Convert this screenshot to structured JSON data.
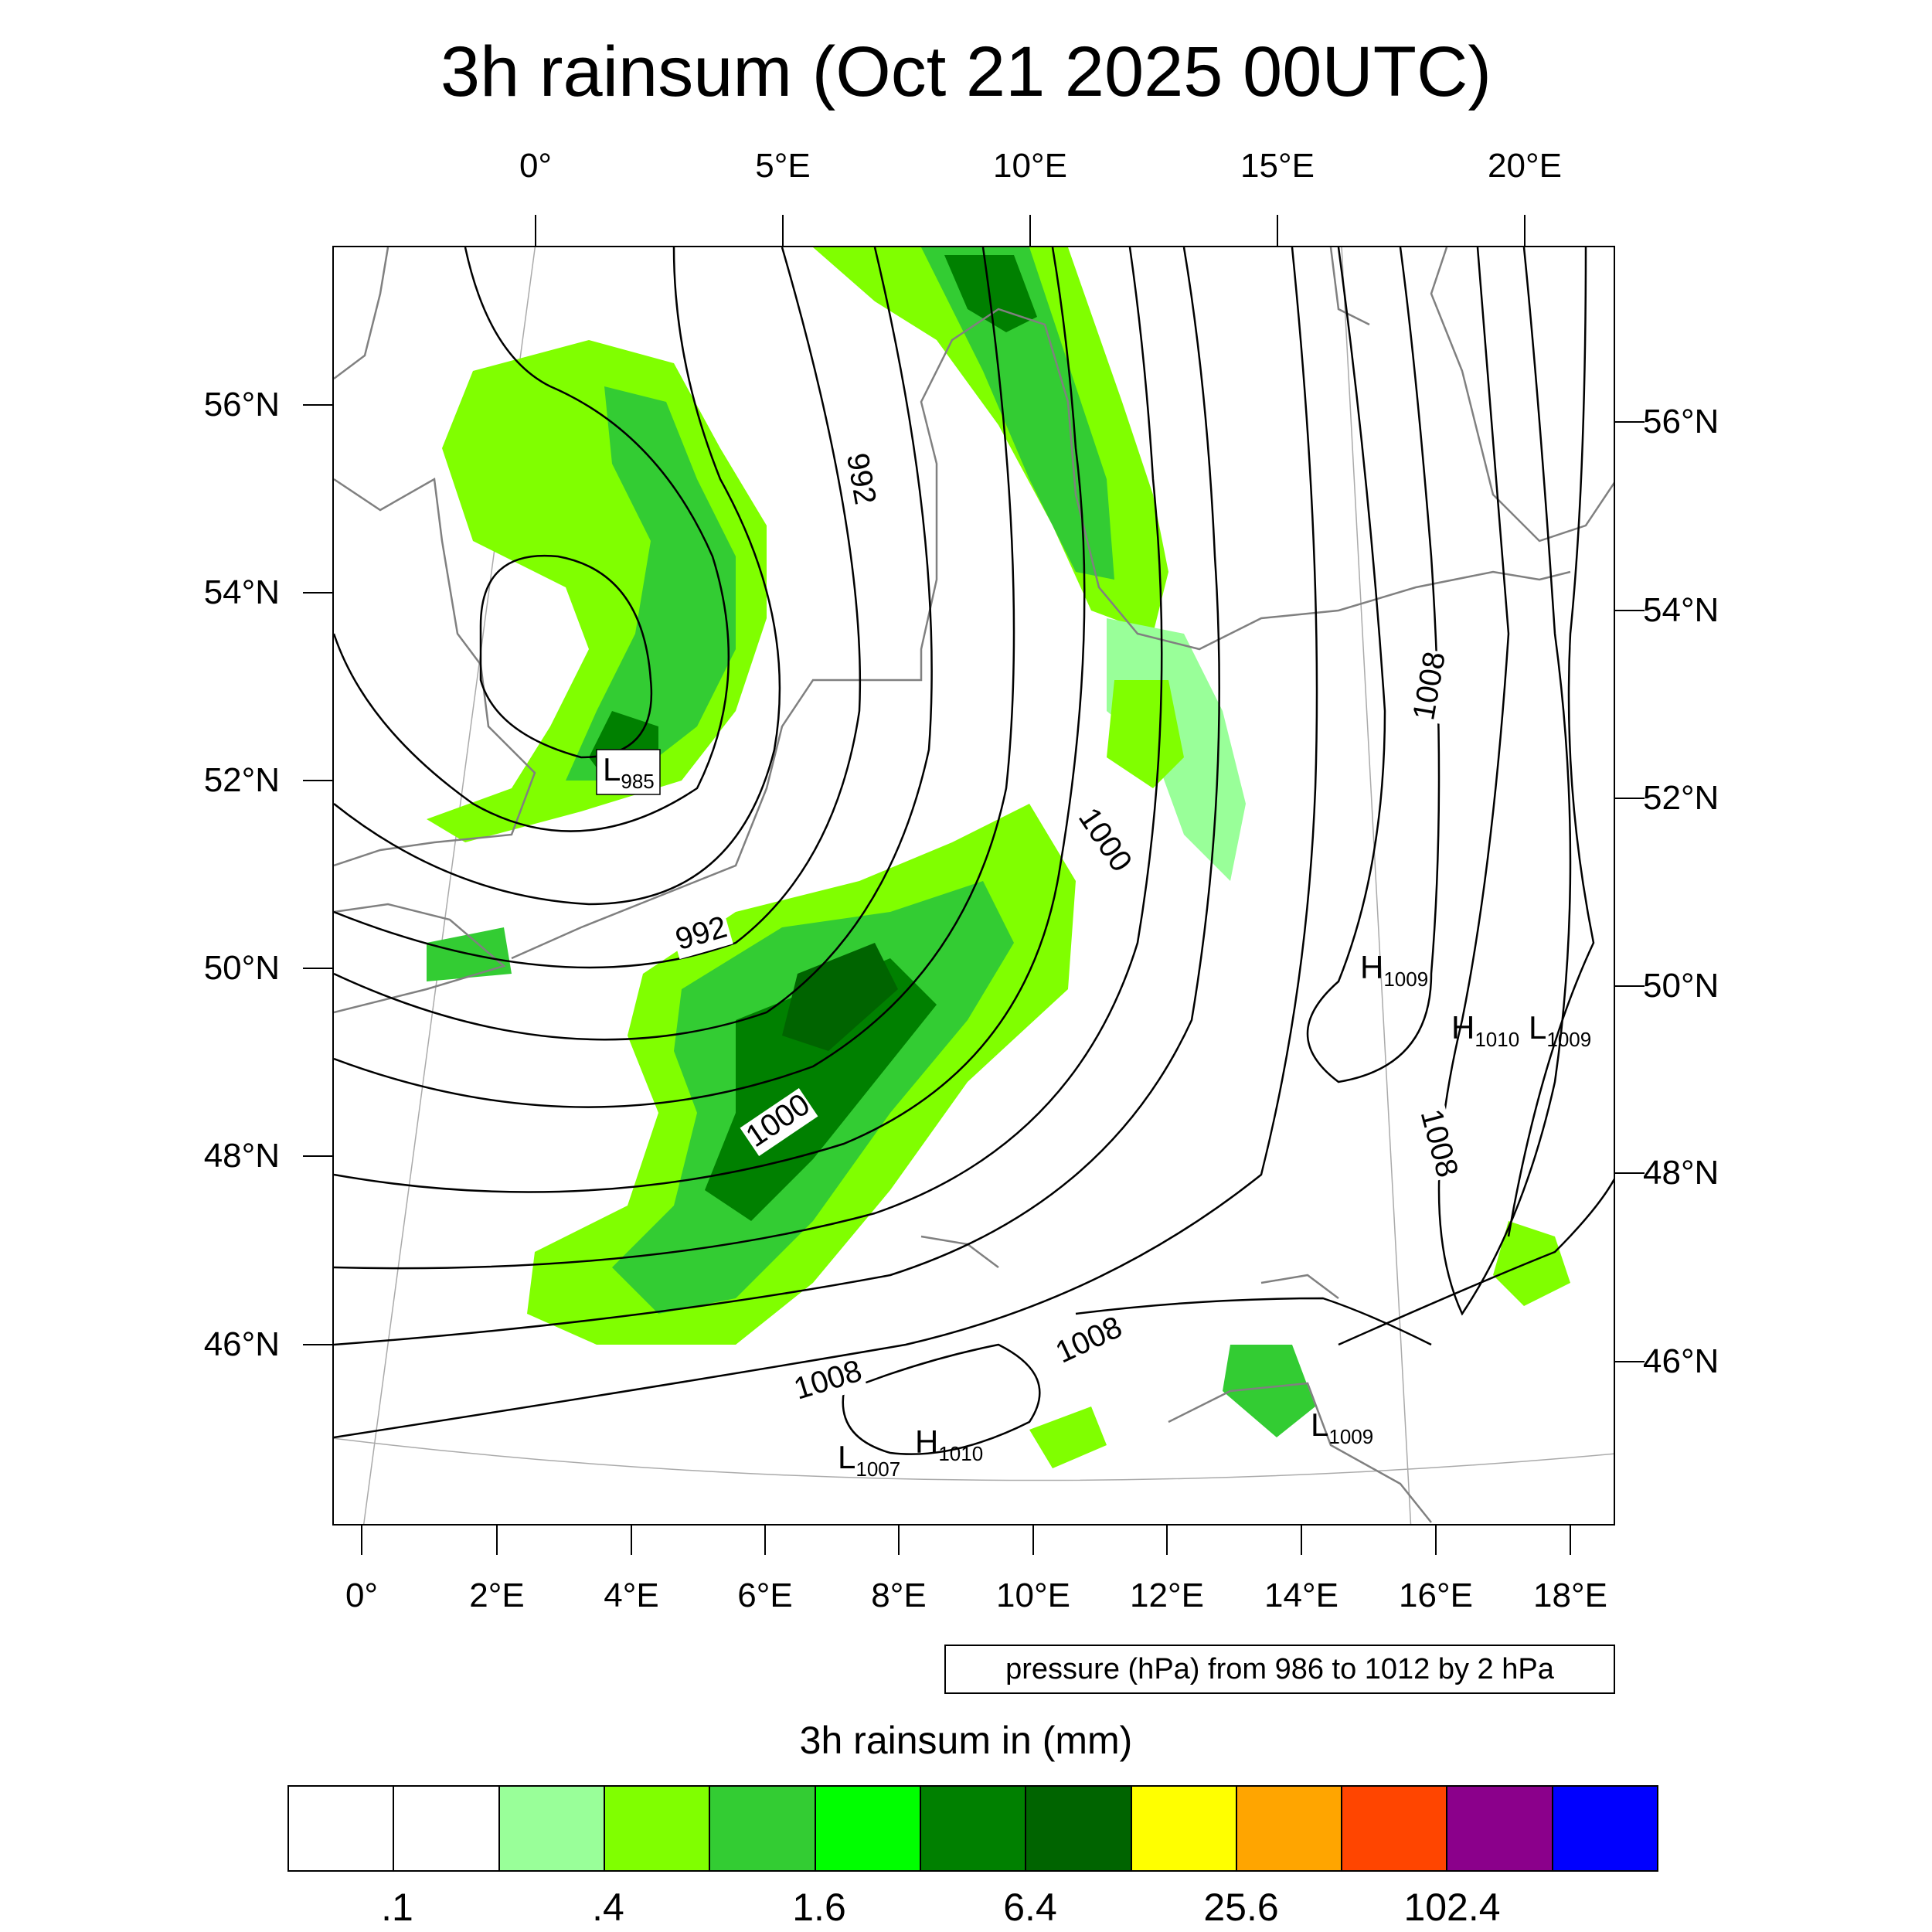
{
  "title": "3h rainsum (Oct 21 2025 00UTC)",
  "top_lon_labels": [
    "0°",
    "5°E",
    "10°E",
    "15°E",
    "20°E"
  ],
  "bottom_lon_labels": [
    "0°",
    "2°E",
    "4°E",
    "6°E",
    "8°E",
    "10°E",
    "12°E",
    "14°E",
    "16°E",
    "18°E"
  ],
  "left_lat_labels": [
    "56°N",
    "54°N",
    "52°N",
    "50°N",
    "48°N",
    "46°N"
  ],
  "right_lat_labels": [
    "56°N",
    "54°N",
    "52°N",
    "50°N",
    "48°N",
    "46°N"
  ],
  "pressure_contour_labels": [
    "992",
    "992",
    "1000",
    "1000",
    "1008",
    "1008",
    "1008",
    "1008"
  ],
  "pressure_centers": [
    {
      "type": "L",
      "value": "985"
    },
    {
      "type": "H",
      "value": "1009"
    },
    {
      "type": "H",
      "value": "1010"
    },
    {
      "type": "L",
      "value": "1009"
    },
    {
      "type": "L",
      "value": "1007"
    },
    {
      "type": "H",
      "value": "1010"
    },
    {
      "type": "L",
      "value": "1009"
    }
  ],
  "info_box": "pressure (hPa) from 986 to 1012 by 2 hPa",
  "colorbar": {
    "title": "3h rainsum in (mm)",
    "colors": [
      "#ffffff",
      "#ffffff",
      "#99ff99",
      "#80ff00",
      "#33cc33",
      "#00ff00",
      "#008000",
      "#006400",
      "#ffff00",
      "#ffa500",
      "#ff4500",
      "#8b008b",
      "#0000ff"
    ],
    "labels": [
      ".1",
      ".4",
      "1.6",
      "6.4",
      "25.6",
      "102.4"
    ]
  },
  "colors": {
    "coastline": "#808080",
    "isobar": "#000000",
    "graticule": "#aaaaaa"
  }
}
